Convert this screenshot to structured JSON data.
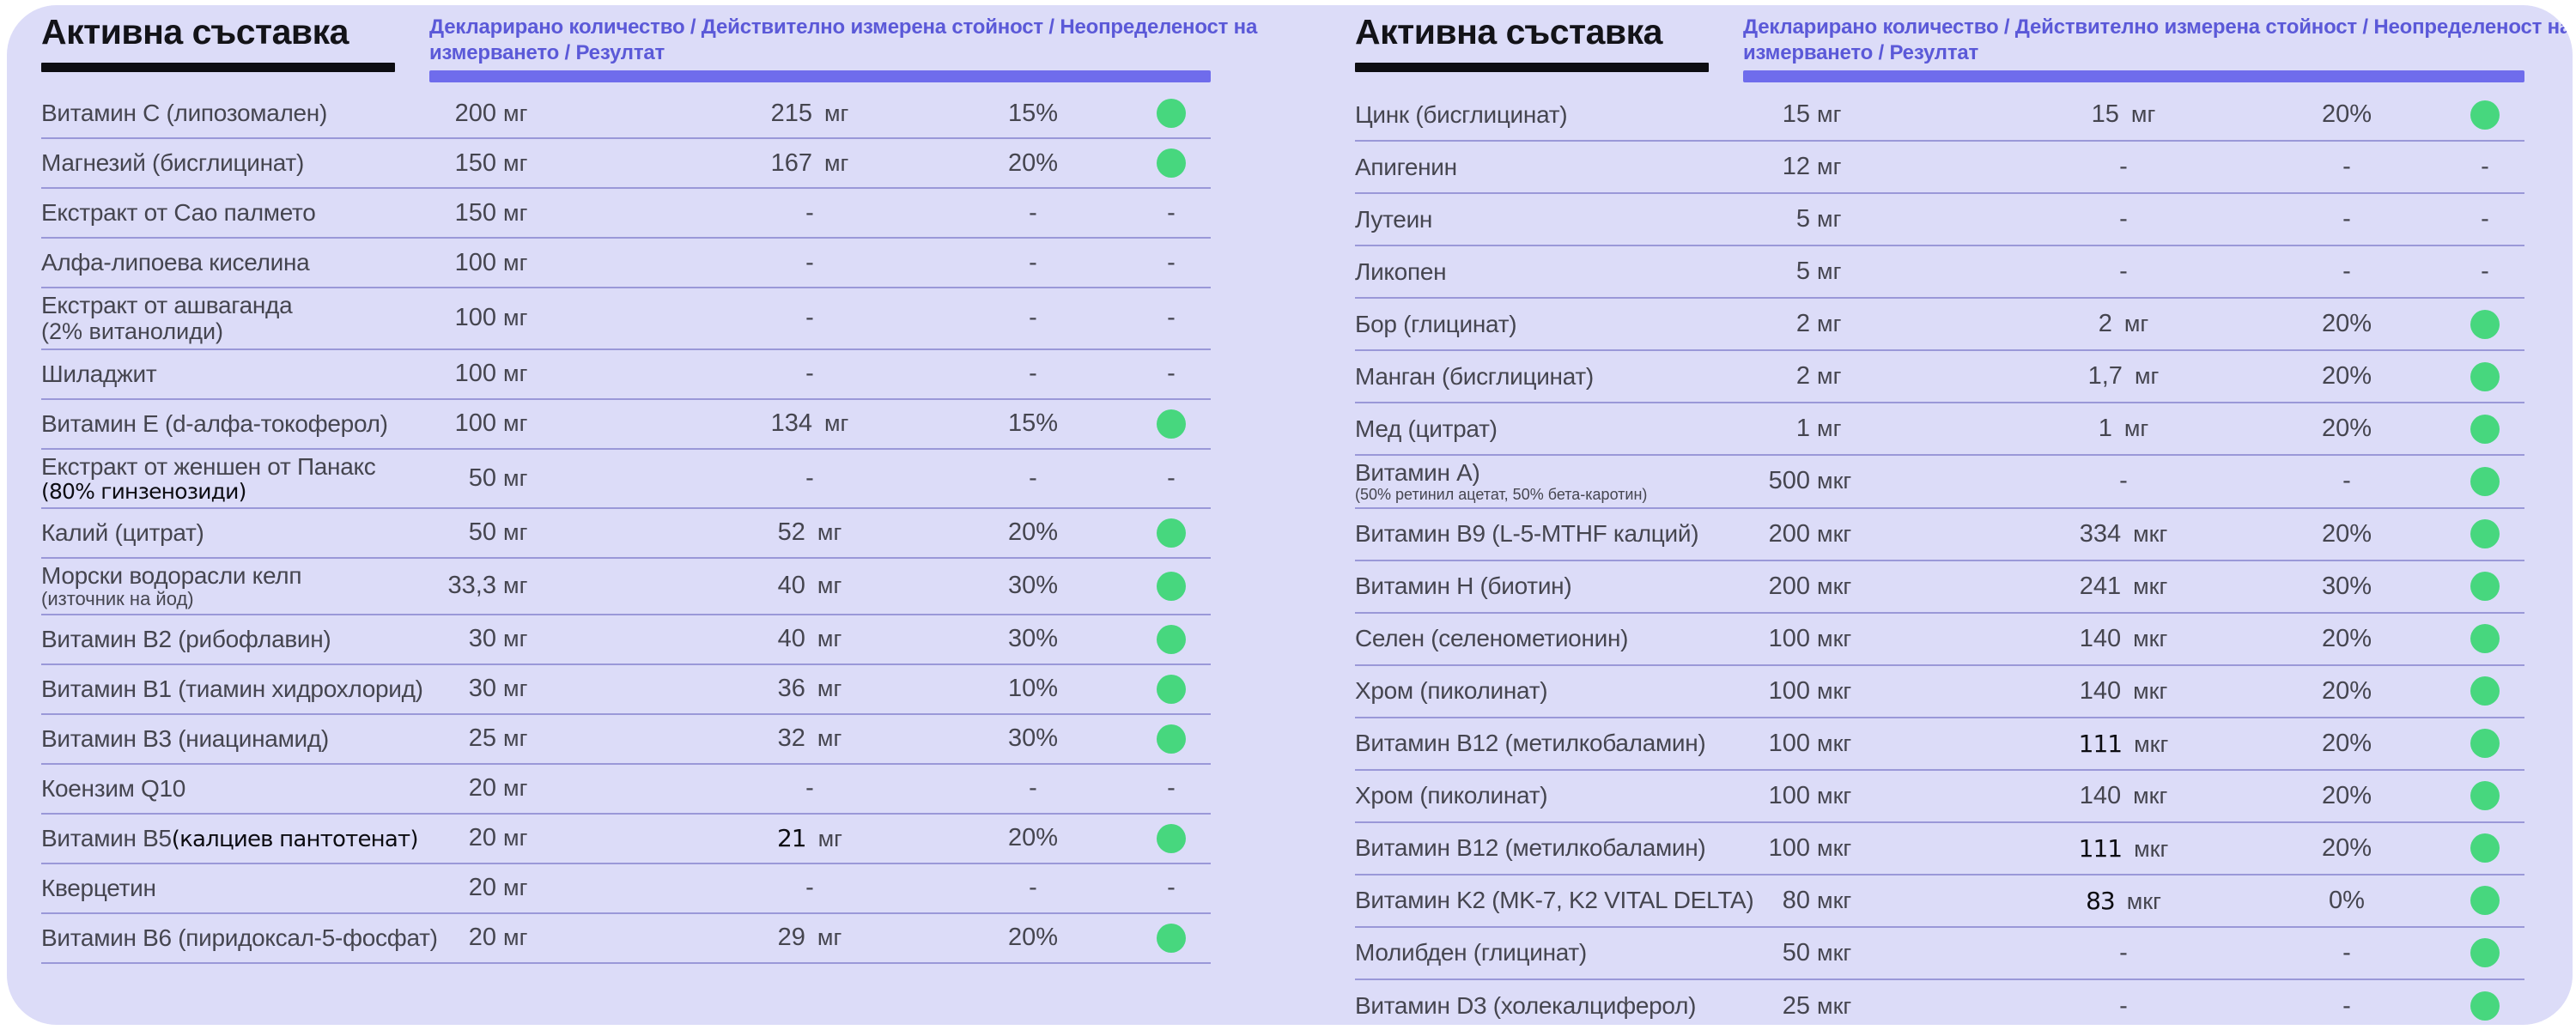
{
  "colors": {
    "card_background": "#dcdcf8",
    "header_purple": "#5b59d8",
    "bar_purple": "#6f6cec",
    "pass_green": "#47d77e",
    "row_line": "#6e6ac3",
    "title_black": "#131318",
    "text_gray": "#45454f"
  },
  "panels": [
    {
      "title": "Активна съставка",
      "header_line1": "Декларирано количество / Действително измерена стойност / Неопределеност на",
      "header_line2": "измерването / Резултат",
      "rows": [
        {
          "name": "Витамин C (липозомален)",
          "declared": "200",
          "declared_unit": "мг",
          "measured": "215",
          "measured_unit": "мг",
          "uncertainty": "15%",
          "result": "pass"
        },
        {
          "name": "Магнезий (бисглицинат)",
          "declared": "150",
          "declared_unit": "мг",
          "measured": "167",
          "measured_unit": "мг",
          "uncertainty": "20%",
          "result": "pass"
        },
        {
          "name": "Екстракт от Сао палмето",
          "declared": "150",
          "declared_unit": "мг",
          "measured": "-",
          "uncertainty": "-",
          "result": "-"
        },
        {
          "name": "Алфа-липоева киселина",
          "declared": "100",
          "declared_unit": "мг",
          "measured": "-",
          "uncertainty": "-",
          "result": "-"
        },
        {
          "name": "Екстракт от ашваганда",
          "name2": "(2% витанолиди)",
          "name2_style": "lg",
          "declared": "100",
          "declared_unit": "мг",
          "measured": "-",
          "uncertainty": "-",
          "result": "-"
        },
        {
          "name": "Шиладжит",
          "declared": "100",
          "declared_unit": "мг",
          "measured": "-",
          "uncertainty": "-",
          "result": "-"
        },
        {
          "name": "Витамин E (d-алфа-токоферол)",
          "declared": "100",
          "declared_unit": "мг",
          "measured": "134",
          "measured_unit": "мг",
          "uncertainty": "15%",
          "result": "pass"
        },
        {
          "name": "Екстракт от женшен от Панакс",
          "name2": "(80% гинзенозиди)",
          "name2_style": "alt",
          "declared": "50",
          "declared_unit": "мг",
          "measured": "-",
          "uncertainty": "-",
          "result": "-"
        },
        {
          "name": "Калий (цитрат)",
          "declared": "50",
          "declared_unit": "мг",
          "measured": "52",
          "measured_unit": "мг",
          "uncertainty": "20%",
          "result": "pass"
        },
        {
          "name": "Морски водорасли келп",
          "name2": "(източник на йод)",
          "name2_style": "sm",
          "declared": "33,3",
          "declared_unit": "мг",
          "measured": "40",
          "measured_unit": "мг",
          "uncertainty": "30%",
          "result": "pass"
        },
        {
          "name": "Витамин B2 (рибофлавин)",
          "declared": "30",
          "declared_unit": "мг",
          "measured": "40",
          "measured_unit": "мг",
          "uncertainty": "30%",
          "result": "pass"
        },
        {
          "name": "Витамин B1 (тиамин хидрохлорид)",
          "declared": "30",
          "declared_unit": "мг",
          "measured": "36",
          "measured_unit": "мг",
          "uncertainty": "10%",
          "result": "pass"
        },
        {
          "name": "Витамин B3 (ниацинамид)",
          "declared": "25",
          "declared_unit": "мг",
          "measured": "32",
          "measured_unit": "мг",
          "uncertainty": "30%",
          "result": "pass"
        },
        {
          "name": "Коензим Q10",
          "declared": "20",
          "declared_unit": "мг",
          "measured": "-",
          "uncertainty": "-",
          "result": "-"
        },
        {
          "name": "Витамин B5",
          "name_alt": "(калциев пантотенат)",
          "declared": "20",
          "declared_unit": "мг",
          "measured": "21",
          "measured_alt": true,
          "measured_unit": "мг",
          "uncertainty": "20%",
          "result": "pass"
        },
        {
          "name": "Кверцетин",
          "declared": "20",
          "declared_unit": "мг",
          "measured": "-",
          "uncertainty": "-",
          "result": "-"
        },
        {
          "name": "Витамин B6 (пиридоксал-5-фосфат)",
          "declared": "20",
          "declared_unit": "мг",
          "measured": "29",
          "measured_unit": "мг",
          "uncertainty": "20%",
          "result": "pass"
        }
      ]
    },
    {
      "title": "Активна съставка",
      "header_line1": "Декларирано количество / Действително измерена стойност / Неопределеност на",
      "header_line2": "измерването / Резултат",
      "rows": [
        {
          "name": "Цинк (бисглицинат)",
          "declared": "15",
          "declared_unit": "мг",
          "measured": "15",
          "measured_unit": "мг",
          "uncertainty": "20%",
          "result": "pass"
        },
        {
          "name": "Апигенин",
          "declared": "12",
          "declared_unit": "мг",
          "measured": "-",
          "uncertainty": "-",
          "result": "-"
        },
        {
          "name": "Лутеин",
          "declared": "5",
          "declared_unit": "мг",
          "measured": "-",
          "uncertainty": "-",
          "result": "-"
        },
        {
          "name": "Ликопен",
          "declared": "5",
          "declared_unit": "мг",
          "measured": "-",
          "uncertainty": "-",
          "result": "-"
        },
        {
          "name": "Бор (глицинат)",
          "declared": "2",
          "declared_unit": "мг",
          "measured": "2",
          "measured_unit": "мг",
          "uncertainty": "20%",
          "result": "pass"
        },
        {
          "name": "Манган (бисглицинат)",
          "declared": "2",
          "declared_unit": "мг",
          "measured": "1,7",
          "measured_unit": "мг",
          "uncertainty": "20%",
          "result": "pass"
        },
        {
          "name": "Мед (цитрат)",
          "declared": "1",
          "declared_unit": "мг",
          "measured": "1",
          "measured_unit": "мг",
          "uncertainty": "20%",
          "result": "pass"
        },
        {
          "name": "Витамин A)",
          "name2": "(50% ретинил ацетат, 50% бета-каротин)",
          "name2_style": "xs",
          "declared": "500",
          "declared_unit": "мкг",
          "measured": "-",
          "uncertainty": "-",
          "result": "pass"
        },
        {
          "name": "Витамин B9 (L-5-MTHF калций)",
          "declared": "200",
          "declared_unit": "мкг",
          "measured": "334",
          "measured_unit": "мкг",
          "uncertainty": "20%",
          "result": "pass"
        },
        {
          "name": "Витамин H (биотин)",
          "declared": "200",
          "declared_unit": "мкг",
          "measured": "241",
          "measured_unit": "мкг",
          "uncertainty": "30%",
          "result": "pass"
        },
        {
          "name": "Селен (селенометионин)",
          "declared": "100",
          "declared_unit": "мкг",
          "measured": "140",
          "measured_unit": "мкг",
          "uncertainty": "20%",
          "result": "pass"
        },
        {
          "name": "Хром (пиколинат)",
          "declared": "100",
          "declared_unit": "мкг",
          "measured": "140",
          "measured_unit": "мкг",
          "uncertainty": "20%",
          "result": "pass"
        },
        {
          "name": "Витамин B12 (метилкобаламин)",
          "declared": "100",
          "declared_unit": "мкг",
          "measured": "111",
          "measured_alt": true,
          "measured_unit": "мкг",
          "uncertainty": "20%",
          "result": "pass"
        },
        {
          "name": "Хром (пиколинат)",
          "declared": "100",
          "declared_unit": "мкг",
          "measured": "140",
          "measured_unit": "мкг",
          "uncertainty": "20%",
          "result": "pass"
        },
        {
          "name": "Витамин B12 (метилкобаламин)",
          "declared": "100",
          "declared_unit": "мкг",
          "measured": "111",
          "measured_alt": true,
          "measured_unit": "мкг",
          "uncertainty": "20%",
          "result": "pass"
        },
        {
          "name": "Витамин K2 (MK-7, K2 VITAL DELTA)",
          "declared": "80",
          "declared_unit": "мкг",
          "measured": "83",
          "measured_alt": true,
          "measured_unit": "мкг",
          "uncertainty": "0%",
          "result": "pass"
        },
        {
          "name": "Молибден (глицинат)",
          "declared": "50",
          "declared_unit": "мкг",
          "measured": "-",
          "uncertainty": "-",
          "result": "pass"
        },
        {
          "name": "Витамин D3 (холекалциферол)",
          "declared": "25",
          "declared_unit": "мкг",
          "measured": "-",
          "uncertainty": "-",
          "result": "pass"
        }
      ]
    }
  ]
}
